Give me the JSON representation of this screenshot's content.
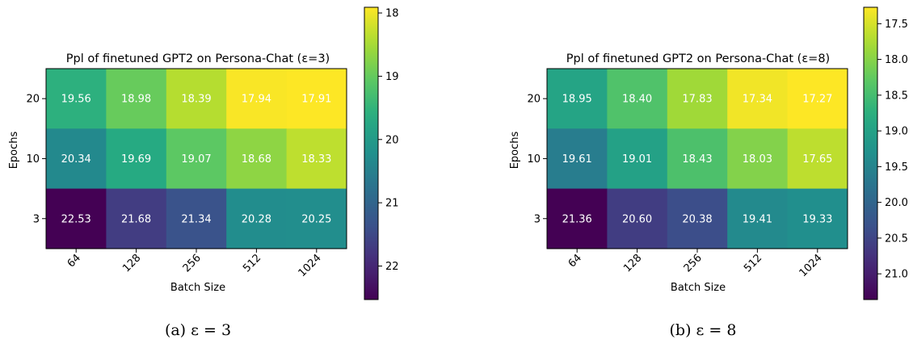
{
  "chart_data": [
    {
      "type": "heatmap",
      "title": "Ppl of finetuned GPT2 on Persona-Chat (ε=3)",
      "xlabel": "Batch Size",
      "ylabel": "Epochs",
      "x_categories": [
        "64",
        "128",
        "256",
        "512",
        "1024"
      ],
      "y_categories": [
        "20",
        "10",
        "3"
      ],
      "values": [
        [
          19.56,
          18.98,
          18.39,
          17.94,
          17.91
        ],
        [
          20.34,
          19.69,
          19.07,
          18.68,
          18.33
        ],
        [
          22.53,
          21.68,
          21.34,
          20.28,
          20.25
        ]
      ],
      "value_labels": [
        [
          "19.56",
          "18.98",
          "18.39",
          "17.94",
          "17.91"
        ],
        [
          "20.34",
          "19.69",
          "19.07",
          "18.68",
          "18.33"
        ],
        [
          "22.53",
          "21.68",
          "21.34",
          "20.28",
          "20.25"
        ]
      ],
      "colorscale": "viridis",
      "color_reversed": true,
      "colorbar_range": [
        17.91,
        22.53
      ],
      "colorbar_ticks": [
        "18",
        "19",
        "20",
        "21",
        "22"
      ],
      "caption": "(a) ε = 3"
    },
    {
      "type": "heatmap",
      "title": "Ppl of finetuned GPT2 on Persona-Chat (ε=8)",
      "xlabel": "Batch Size",
      "ylabel": "Epochs",
      "x_categories": [
        "64",
        "128",
        "256",
        "512",
        "1024"
      ],
      "y_categories": [
        "20",
        "10",
        "3"
      ],
      "values": [
        [
          18.95,
          18.4,
          17.83,
          17.34,
          17.27
        ],
        [
          19.61,
          19.01,
          18.43,
          18.03,
          17.65
        ],
        [
          21.36,
          20.6,
          20.38,
          19.41,
          19.33
        ]
      ],
      "value_labels": [
        [
          "18.95",
          "18.40",
          "17.83",
          "17.34",
          "17.27"
        ],
        [
          "19.61",
          "19.01",
          "18.43",
          "18.03",
          "17.65"
        ],
        [
          "21.36",
          "20.60",
          "20.38",
          "19.41",
          "19.33"
        ]
      ],
      "colorscale": "viridis",
      "color_reversed": true,
      "colorbar_range": [
        17.27,
        21.36
      ],
      "colorbar_ticks": [
        "17.5",
        "18.0",
        "18.5",
        "19.0",
        "19.5",
        "20.0",
        "20.5",
        "21.0"
      ],
      "caption": "(b) ε = 8"
    }
  ]
}
